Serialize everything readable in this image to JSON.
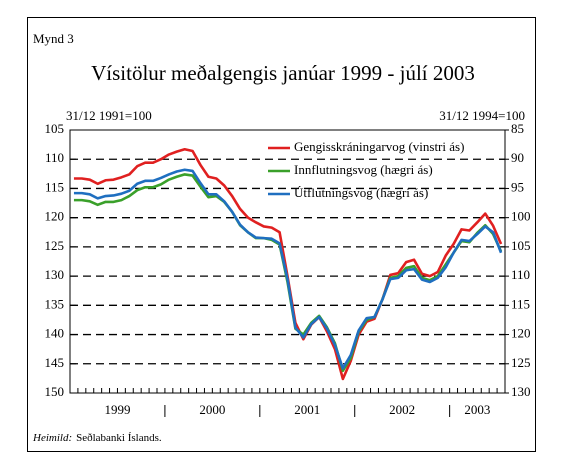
{
  "chart_data": {
    "type": "line",
    "figure_label": "Mynd 3",
    "title": "Vísitölur meðalgengis janúar 1999 - júlí 2003",
    "y_label": "31/12 1991=100",
    "y2_label": "31/12 1994=100",
    "source_label": "Heimild:",
    "source": "Seðlabanki Íslands.",
    "categories": [
      null,
      null,
      null,
      null,
      null,
      null,
      null,
      null,
      null,
      null,
      null,
      null,
      null,
      null,
      null,
      null,
      null,
      null,
      null,
      null,
      null,
      null,
      null,
      null,
      null,
      null,
      null,
      null,
      null,
      null,
      null,
      null,
      null,
      null,
      null,
      null,
      null,
      null,
      null,
      null,
      null,
      null,
      null,
      null,
      null,
      null,
      null,
      null,
      null,
      null,
      null,
      null,
      null,
      null,
      null
    ],
    "year_labels": [
      "1999",
      "2000",
      "2001",
      "2002",
      "2003"
    ],
    "ylim": [
      105,
      150
    ],
    "yticks": [
      105,
      110,
      115,
      120,
      125,
      130,
      135,
      140,
      145,
      150
    ],
    "y2lim": [
      85,
      130
    ],
    "y2ticks": [
      85,
      90,
      95,
      100,
      105,
      110,
      115,
      120,
      125,
      130
    ],
    "inverted": true,
    "grid": true,
    "legend": "upper right",
    "series": [
      {
        "name": "Gengisskráningarvog (vinstri ás)",
        "color": "#e02020",
        "values": [
          113.3,
          113.3,
          113.5,
          114.2,
          113.6,
          113.5,
          113.1,
          112.6,
          111.2,
          110.6,
          110.6,
          110.0,
          109.2,
          108.7,
          108.3,
          108.6,
          111.0,
          113.0,
          113.3,
          114.5,
          116.3,
          118.5,
          120.0,
          120.8,
          121.5,
          121.7,
          122.5,
          130.0,
          138.0,
          140.8,
          138.3,
          137.0,
          139.5,
          142.5,
          147.6,
          144.5,
          140.0,
          137.8,
          137.3,
          134.0,
          129.8,
          129.5,
          127.6,
          127.2,
          129.6,
          130.0,
          129.3,
          126.5,
          124.5,
          122.0,
          122.2,
          120.8,
          119.3,
          121.4,
          124.5
        ]
      },
      {
        "name": "Innflutningsvog (hægri ás)",
        "color": "#3aa02a",
        "axis": "y2",
        "values": [
          97.0,
          97.0,
          97.2,
          97.8,
          97.3,
          97.3,
          97.0,
          96.3,
          95.3,
          94.8,
          94.8,
          94.3,
          93.5,
          93.0,
          92.6,
          92.8,
          94.7,
          96.5,
          96.3,
          97.3,
          99.0,
          101.3,
          102.5,
          103.5,
          103.5,
          103.8,
          104.6,
          111.0,
          119.0,
          120.0,
          118.0,
          116.8,
          118.8,
          121.5,
          126.2,
          124.0,
          119.5,
          117.5,
          117.0,
          114.0,
          110.3,
          110.0,
          108.6,
          108.3,
          110.3,
          110.7,
          110.0,
          108.0,
          106.0,
          104.0,
          104.2,
          102.6,
          101.3,
          102.8,
          105.8
        ]
      },
      {
        "name": "Útflutningsvog (hægri ás)",
        "color": "#1f6fc0",
        "axis": "y2",
        "values": [
          95.8,
          95.8,
          96.0,
          96.7,
          96.3,
          96.2,
          95.9,
          95.4,
          94.2,
          93.7,
          93.7,
          93.2,
          92.6,
          92.1,
          91.8,
          92.0,
          94.1,
          96.0,
          96.0,
          97.2,
          99.0,
          101.2,
          102.5,
          103.4,
          103.5,
          103.6,
          104.4,
          110.5,
          118.8,
          120.5,
          118.2,
          117.0,
          119.0,
          121.8,
          125.8,
          123.5,
          119.3,
          117.2,
          117.0,
          114.0,
          110.5,
          110.3,
          109.0,
          108.8,
          110.6,
          111.0,
          110.3,
          108.5,
          106.0,
          103.8,
          104.0,
          102.8,
          101.5,
          102.5,
          106.0
        ]
      }
    ]
  }
}
